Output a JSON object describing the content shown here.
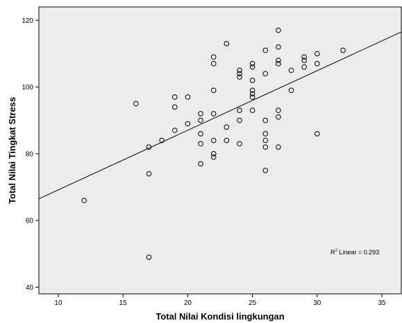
{
  "chart_data": {
    "type": "scatter",
    "title": "",
    "xlabel": "Total Nilai Kondisi lingkungan",
    "ylabel": "Total Nilai Tingkat Stress",
    "xlim": [
      8.5,
      36.5
    ],
    "ylim": [
      38,
      124
    ],
    "xticks": [
      10,
      15,
      20,
      25,
      30,
      35
    ],
    "yticks": [
      40,
      60,
      80,
      100,
      120
    ],
    "grid": false,
    "background": "#ececec",
    "marker": "open-circle",
    "points": [
      [
        12,
        66
      ],
      [
        16,
        95
      ],
      [
        17,
        82
      ],
      [
        17,
        74
      ],
      [
        17,
        49
      ],
      [
        18,
        84
      ],
      [
        19,
        97
      ],
      [
        19,
        94
      ],
      [
        19,
        87
      ],
      [
        20,
        97
      ],
      [
        20,
        89
      ],
      [
        21,
        92
      ],
      [
        21,
        90
      ],
      [
        21,
        86
      ],
      [
        21,
        83
      ],
      [
        21,
        77
      ],
      [
        22,
        109
      ],
      [
        22,
        107
      ],
      [
        22,
        99
      ],
      [
        22,
        92
      ],
      [
        22,
        84
      ],
      [
        22,
        80
      ],
      [
        22,
        79
      ],
      [
        23,
        113
      ],
      [
        23,
        88
      ],
      [
        23,
        84
      ],
      [
        24,
        105
      ],
      [
        24,
        104
      ],
      [
        24,
        103
      ],
      [
        24,
        93
      ],
      [
        24,
        90
      ],
      [
        24,
        83
      ],
      [
        25,
        107
      ],
      [
        25,
        106
      ],
      [
        25,
        102
      ],
      [
        25,
        99
      ],
      [
        25,
        98
      ],
      [
        25,
        97
      ],
      [
        25,
        93
      ],
      [
        26,
        111
      ],
      [
        26,
        104
      ],
      [
        26,
        90
      ],
      [
        26,
        86
      ],
      [
        26,
        84
      ],
      [
        26,
        82
      ],
      [
        26,
        75
      ],
      [
        27,
        117
      ],
      [
        27,
        112
      ],
      [
        27,
        108
      ],
      [
        27,
        107
      ],
      [
        27,
        93
      ],
      [
        27,
        91
      ],
      [
        27,
        82
      ],
      [
        28,
        105
      ],
      [
        28,
        99
      ],
      [
        29,
        109
      ],
      [
        29,
        108
      ],
      [
        29,
        106
      ],
      [
        30,
        110
      ],
      [
        30,
        107
      ],
      [
        30,
        86
      ],
      [
        32,
        111
      ]
    ],
    "fit_line": {
      "type": "linear",
      "label": "R² Linear = 0.293",
      "x": [
        8.5,
        36.5
      ],
      "y": [
        66.5,
        116.5
      ]
    },
    "annotation": {
      "prefix": "R",
      "superscript": "2",
      "text": " Linear = 0.293"
    }
  }
}
